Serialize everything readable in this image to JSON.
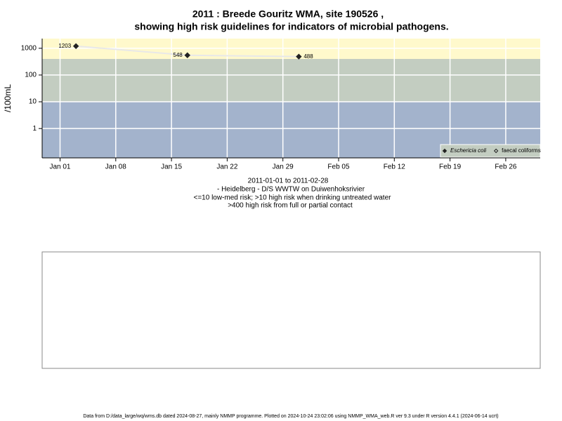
{
  "chart_data": {
    "type": "line",
    "title": [
      "2011 : Breede Gouritz WMA, site 190526 ,",
      "showing high risk guidelines for indicators of microbial pathogens."
    ],
    "subtitle": [
      "2011-01-01 to 2011-02-28",
      "- Heidelberg - D/S WWTW on Duiwenhoksrivier",
      "<=10 low-med risk; >10 high risk when drinking untreated water",
      ">400 high risk from full or partial contact"
    ],
    "y_label": "/100mL",
    "x": [
      "2011-01-03",
      "2011-01-17",
      "2011-01-31"
    ],
    "series": [
      {
        "name": "Eschericia coli",
        "color": "#222222",
        "values": [
          1203,
          548,
          488
        ]
      },
      {
        "name": "faecal coliforms",
        "color": "#222222",
        "values": [
          null,
          null,
          null
        ]
      }
    ],
    "line_color": "#e8e8e8",
    "log_y": true,
    "ylim": [
      0.08,
      2300
    ],
    "yticks": [
      1,
      10,
      100,
      1000
    ],
    "xlim": [
      "2010-12-29T18:00",
      "2011-03-02T08:00"
    ],
    "xticks": [
      {
        "value": "2011-01-01",
        "label": "Jan 01"
      },
      {
        "value": "2011-01-08",
        "label": "Jan 08"
      },
      {
        "value": "2011-01-15",
        "label": "Jan 15"
      },
      {
        "value": "2011-01-22",
        "label": "Jan 22"
      },
      {
        "value": "2011-01-29",
        "label": "Jan 29"
      },
      {
        "value": "2011-02-05",
        "label": "Feb 05"
      },
      {
        "value": "2011-02-12",
        "label": "Feb 12"
      },
      {
        "value": "2011-02-19",
        "label": "Feb 19"
      },
      {
        "value": "2011-02-26",
        "label": "Feb 26"
      }
    ],
    "thresholds": [
      10,
      400
    ],
    "band_colors": [
      "#a3b3cc",
      "#c3cdc1",
      "#fff9cc"
    ],
    "grid": true,
    "legend": "bottom-right",
    "footer": "Data from D:/data_large/wq/wms.db dated 2024-08-27, mainly NMMP programme. Plotted on 2024-10-24 23:02:06 using NMMP_WMA_web.R ver 9.3 under R version 4.4.1 (2024-06-14 ucrt)"
  }
}
